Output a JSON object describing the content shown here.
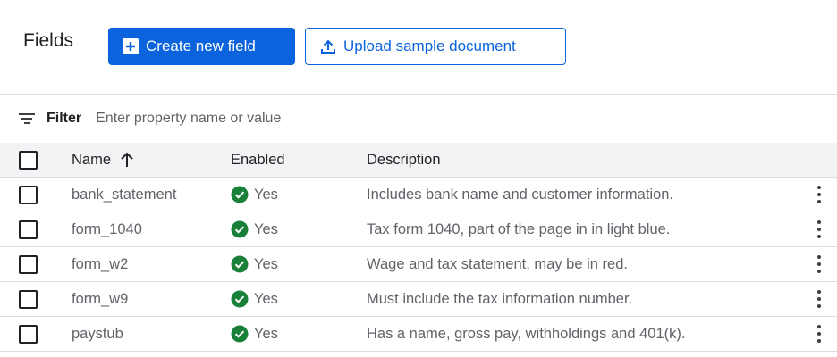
{
  "header": {
    "title": "Fields",
    "create_label": "Create new field",
    "upload_label": "Upload sample document"
  },
  "filter": {
    "label": "Filter",
    "placeholder": "Enter property name or value"
  },
  "table": {
    "columns": {
      "name": "Name",
      "enabled": "Enabled",
      "description": "Description"
    },
    "sort": {
      "column": "Name",
      "direction": "ascending"
    },
    "rows": [
      {
        "name": "bank_statement",
        "enabled": "Yes",
        "description": "Includes bank name and customer information."
      },
      {
        "name": "form_1040",
        "enabled": "Yes",
        "description": "Tax form 1040, part of the page in in light blue."
      },
      {
        "name": "form_w2",
        "enabled": "Yes",
        "description": "Wage and tax statement, may be in red."
      },
      {
        "name": "form_w9",
        "enabled": "Yes",
        "description": "Must include the tax information number."
      },
      {
        "name": "paystub",
        "enabled": "Yes",
        "description": "Has a name, gross pay, withholdings and 401(k)."
      }
    ]
  },
  "colors": {
    "primary": "#0b63dd",
    "success": "#188038"
  }
}
